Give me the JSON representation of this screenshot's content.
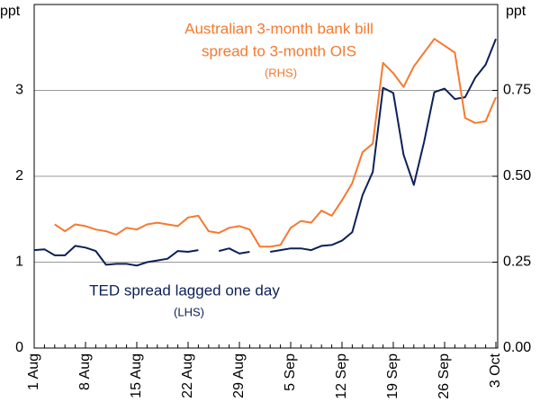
{
  "chart_data": {
    "type": "line",
    "ylabel": "ppt",
    "y2label": "ppt",
    "categories": [
      "1 Aug",
      null,
      null,
      null,
      null,
      "8 Aug",
      null,
      null,
      null,
      null,
      "15 Aug",
      null,
      null,
      null,
      null,
      "22 Aug",
      null,
      null,
      null,
      null,
      "29 Aug",
      null,
      null,
      null,
      null,
      "5 Sep",
      null,
      null,
      null,
      null,
      "12 Sep",
      null,
      null,
      null,
      null,
      "19 Sep",
      null,
      null,
      null,
      null,
      "26 Sep",
      null,
      null,
      null,
      null,
      "3 Oct"
    ],
    "series": [
      {
        "name": "TED spread lagged one day",
        "color": "#0d2157",
        "axis": "y",
        "values": [
          1.14,
          1.15,
          1.08,
          1.08,
          1.19,
          1.17,
          1.13,
          0.97,
          0.98,
          0.98,
          0.96,
          1.0,
          1.02,
          1.04,
          1.13,
          1.12,
          1.14,
          null,
          1.13,
          1.16,
          1.1,
          1.12,
          null,
          1.12,
          1.14,
          1.16,
          1.16,
          1.14,
          1.19,
          1.2,
          1.25,
          1.35,
          1.78,
          2.05,
          3.03,
          2.97,
          2.25,
          1.9,
          2.4,
          2.98,
          3.02,
          2.9,
          2.92,
          3.15,
          3.3,
          3.6
        ]
      },
      {
        "name": "Australian 3-month bank bill spread to 3-month OIS",
        "color": "#f47a2f",
        "axis": "y2",
        "values": [
          null,
          null,
          0.36,
          0.34,
          0.36,
          0.355,
          0.345,
          0.34,
          0.33,
          0.35,
          0.345,
          0.36,
          0.365,
          0.36,
          0.355,
          0.38,
          0.385,
          0.34,
          0.335,
          0.35,
          0.355,
          0.345,
          0.295,
          0.295,
          0.3,
          0.35,
          0.37,
          0.365,
          0.4,
          0.385,
          0.43,
          0.48,
          0.57,
          0.595,
          0.83,
          0.8,
          0.76,
          0.82,
          0.86,
          0.9,
          0.88,
          0.86,
          0.67,
          0.655,
          0.66,
          0.73
        ]
      }
    ],
    "annotations": [
      {
        "lines": [
          "Australian 3-month bank bill",
          "spread to 3-month OIS",
          "(RHS)"
        ],
        "series": 1
      },
      {
        "lines": [
          "TED spread lagged one day",
          "(LHS)"
        ],
        "series": 0
      }
    ],
    "ylim": [
      0,
      4
    ],
    "yticks": [
      0,
      1,
      2,
      3
    ],
    "y2lim": [
      0,
      1
    ],
    "y2ticks": [
      {
        "value": 0,
        "label": "0.00"
      },
      {
        "value": 0.25,
        "label": "0.25"
      },
      {
        "value": 0.5,
        "label": "0.50"
      },
      {
        "value": 0.75,
        "label": "0.75"
      }
    ],
    "grid": true
  }
}
